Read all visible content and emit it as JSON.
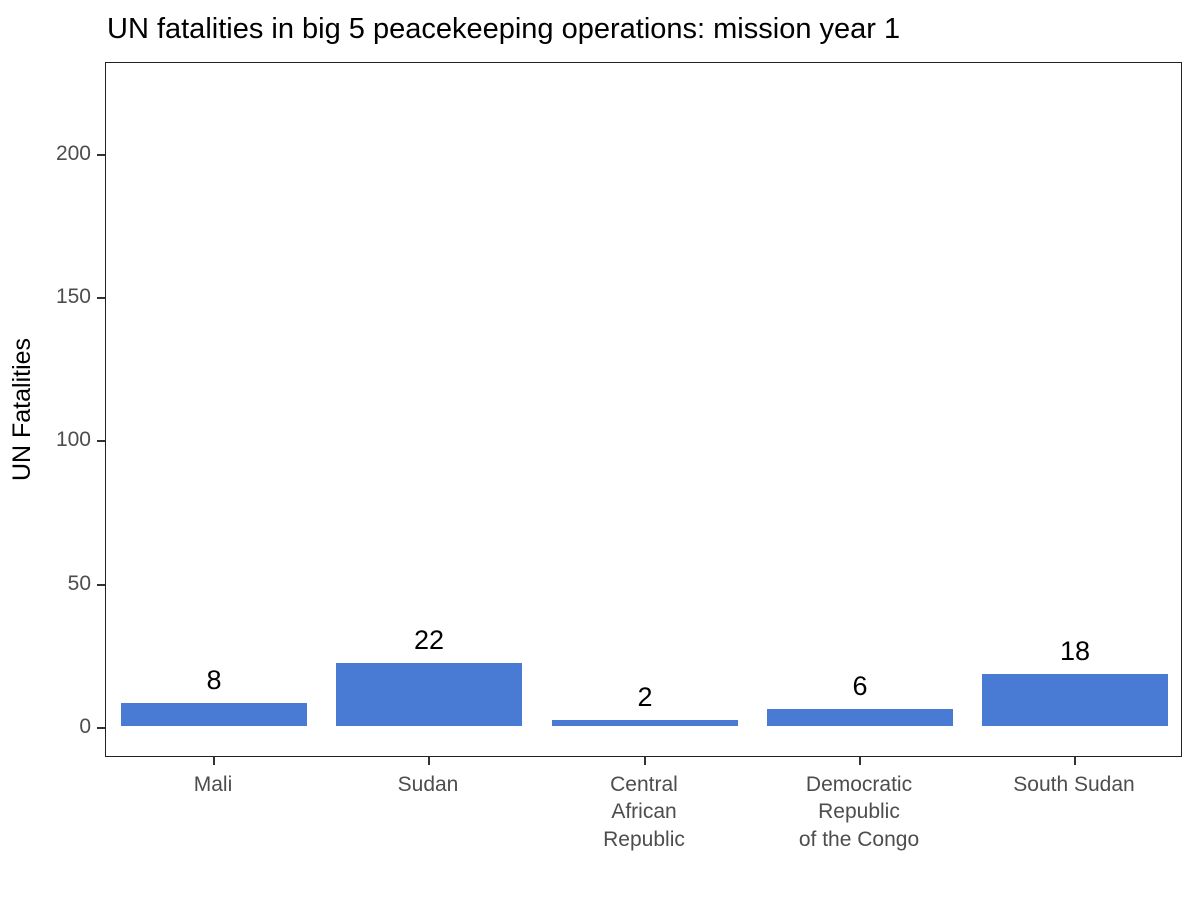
{
  "chart_data": {
    "type": "bar",
    "title": "UN fatalities in big 5 peacekeeping operations: mission year 1",
    "xlabel": "",
    "ylabel": "UN Fatalities",
    "categories": [
      "Mali",
      "Sudan",
      "Central\nAfrican\nRepublic",
      "Democratic\nRepublic\nof the Congo",
      "South Sudan"
    ],
    "values": [
      8,
      22,
      2,
      6,
      18
    ],
    "value_labels": [
      "8",
      "22",
      "2",
      "6",
      "18"
    ],
    "yticks": [
      0,
      50,
      100,
      150,
      200
    ],
    "ylim": [
      0,
      232
    ],
    "bar_color": "#4a7bd4",
    "grid": false,
    "legend_position": "none",
    "panel_border": true
  }
}
